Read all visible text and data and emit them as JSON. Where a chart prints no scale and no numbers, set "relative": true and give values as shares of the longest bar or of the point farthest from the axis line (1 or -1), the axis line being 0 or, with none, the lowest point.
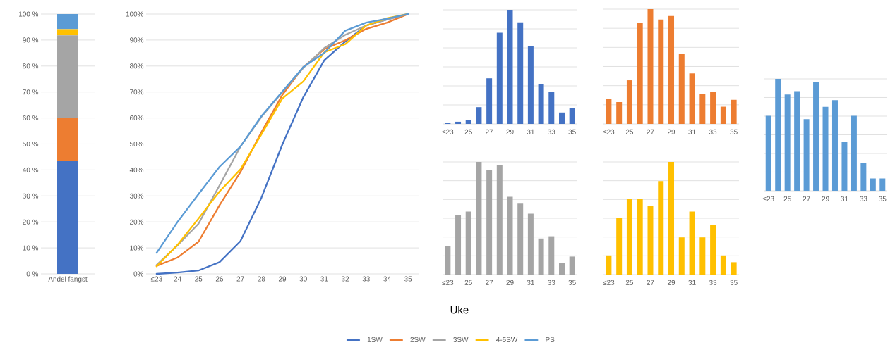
{
  "chart_data": [
    {
      "type": "bar",
      "stacked": true,
      "grid": "y",
      "categories": [
        "Andel fangst"
      ],
      "ylim": [
        0,
        100
      ],
      "yticks": [
        {
          "value": 0,
          "label": "0 %"
        },
        {
          "value": 10,
          "label": "10 %"
        },
        {
          "value": 20,
          "label": "20 %"
        },
        {
          "value": 30,
          "label": "30 %"
        },
        {
          "value": 40,
          "label": "40 %"
        },
        {
          "value": 50,
          "label": "50 %"
        },
        {
          "value": 60,
          "label": "60 %"
        },
        {
          "value": 70,
          "label": "70 %"
        },
        {
          "value": 80,
          "label": "80 %"
        },
        {
          "value": 90,
          "label": "90 %"
        },
        {
          "value": 100,
          "label": "100 %"
        }
      ],
      "series": [
        {
          "color": "#4472c4",
          "values": [
            43.5
          ]
        },
        {
          "color": "#ed7d31",
          "values": [
            16.5
          ]
        },
        {
          "color": "#a5a5a5",
          "values": [
            31.8
          ]
        },
        {
          "color": "#ffc000",
          "values": [
            2.4
          ]
        },
        {
          "color": "#5b9bd5",
          "values": [
            5.8
          ]
        }
      ]
    },
    {
      "type": "line",
      "grid": "y",
      "legend": "bottom",
      "xlabel": "Uke",
      "categories": [
        "≤23",
        "24",
        "25",
        "26",
        "27",
        "28",
        "29",
        "30",
        "31",
        "32",
        "33",
        "34",
        "35"
      ],
      "ylim": [
        0,
        100
      ],
      "yticks": [
        {
          "value": 0,
          "label": "0%"
        },
        {
          "value": 10,
          "label": "10%"
        },
        {
          "value": 20,
          "label": "20%"
        },
        {
          "value": 30,
          "label": "30%"
        },
        {
          "value": 40,
          "label": "40%"
        },
        {
          "value": 50,
          "label": "50%"
        },
        {
          "value": 60,
          "label": "60%"
        },
        {
          "value": 70,
          "label": "70%"
        },
        {
          "value": 80,
          "label": "80%"
        },
        {
          "value": 90,
          "label": "90%"
        },
        {
          "value": 100,
          "label": "100%"
        }
      ],
      "series": [
        {
          "name": "1SW",
          "color": "#4472c4",
          "values": [
            0,
            0.5,
            1.3,
            4.5,
            12.6,
            29.3,
            49.8,
            68,
            82.2,
            89.4,
            95.6,
            97.9,
            100
          ]
        },
        {
          "name": "2SW",
          "color": "#ed7d31",
          "values": [
            3.1,
            6.3,
            12.4,
            26.4,
            39.2,
            54.5,
            68.9,
            79.6,
            86.5,
            89.9,
            94.3,
            96.7,
            100
          ]
        },
        {
          "name": "3SW",
          "color": "#a5a5a5",
          "values": [
            3.4,
            11,
            19.3,
            34,
            49,
            60.4,
            70,
            79.3,
            86.9,
            92,
            95.6,
            97.9,
            100
          ]
        },
        {
          "name": "4-5SW",
          "color": "#ffc000",
          "values": [
            2.9,
            11.2,
            21.3,
            31.7,
            40.2,
            53.7,
            67.5,
            74.1,
            85.3,
            88.4,
            95.6,
            98.4,
            100
          ]
        },
        {
          "name": "PS",
          "color": "#5b9bd5",
          "values": [
            8.1,
            20,
            30.7,
            41.2,
            49,
            60.7,
            70.2,
            79.6,
            85.1,
            93.6,
            96.7,
            98.2,
            100
          ]
        }
      ]
    },
    {
      "type": "bar",
      "relative": true,
      "grid": "y",
      "color": "#4472c4",
      "categories": [
        "≤23",
        null,
        "25",
        null,
        "27",
        null,
        "29",
        null,
        "31",
        null,
        "33",
        null,
        "35"
      ],
      "values": [
        0.006,
        0.019,
        0.037,
        0.147,
        0.4,
        0.8,
        1,
        0.89,
        0.68,
        0.35,
        0.28,
        0.1,
        0.14
      ]
    },
    {
      "type": "bar",
      "relative": true,
      "grid": "y",
      "color": "#ed7d31",
      "categories": [
        "≤23",
        null,
        "25",
        null,
        "27",
        null,
        "29",
        null,
        "31",
        null,
        "33",
        null,
        "35"
      ],
      "values": [
        0.22,
        0.19,
        0.38,
        0.88,
        1,
        0.91,
        0.94,
        0.61,
        0.44,
        0.26,
        0.28,
        0.15,
        0.21
      ]
    },
    {
      "type": "bar",
      "relative": true,
      "grid": "y",
      "color": "#a5a5a5",
      "categories": [
        "≤23",
        null,
        "25",
        null,
        "27",
        null,
        "29",
        null,
        "31",
        null,
        "33",
        null,
        "35"
      ],
      "values": [
        0.25,
        0.53,
        0.56,
        1,
        0.93,
        0.97,
        0.69,
        0.63,
        0.54,
        0.32,
        0.34,
        0.1,
        0.16
      ]
    },
    {
      "type": "bar",
      "relative": true,
      "grid": "y",
      "color": "#ffc000",
      "categories": [
        "≤23",
        null,
        "25",
        null,
        "27",
        null,
        "29",
        null,
        "31",
        null,
        "33",
        null,
        "35"
      ],
      "values": [
        0.17,
        0.5,
        0.67,
        0.67,
        0.61,
        0.83,
        1,
        0.33,
        0.56,
        0.33,
        0.44,
        0.17,
        0.11
      ]
    },
    {
      "type": "bar",
      "relative": true,
      "grid": "y",
      "color": "#5b9bd5",
      "categories": [
        "≤23",
        null,
        "25",
        null,
        "27",
        null,
        "29",
        null,
        "31",
        null,
        "33",
        null,
        "35"
      ],
      "values": [
        0.67,
        1,
        0.86,
        0.89,
        0.64,
        0.97,
        0.75,
        0.81,
        0.44,
        0.67,
        0.25,
        0.11,
        0.11
      ]
    }
  ]
}
